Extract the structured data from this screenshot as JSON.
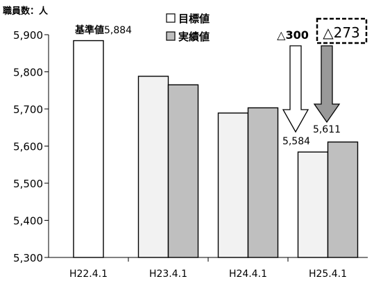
{
  "chart_data": {
    "type": "bar",
    "ylabel": "職員数：人",
    "categories": [
      "H22.4.1",
      "H23.4.1",
      "H24.4.1",
      "H25.4.1"
    ],
    "ylim": [
      5300,
      5900
    ],
    "yticks": [
      5900,
      5800,
      5700,
      5600,
      5500,
      5400,
      5300
    ],
    "ytick_labels": [
      "5,900",
      "5,800",
      "5,700",
      "5,600",
      "5,500",
      "5,400",
      "5,300"
    ],
    "grid": false,
    "legend_position": "top-right",
    "baseline": {
      "label": "基準値",
      "value": 5884,
      "value_label": "5,884",
      "color": "#ffffff"
    },
    "series": [
      {
        "name": "目標値",
        "color": "#f2f2f2",
        "values": [
          null,
          5788,
          5689,
          5584
        ]
      },
      {
        "name": "実績値",
        "color": "#bfbfbf",
        "values": [
          null,
          5765,
          5703,
          5611
        ]
      }
    ],
    "data_labels": [
      "5,584",
      "5,611"
    ],
    "annotations": {
      "target_reduction": "△300",
      "actual_reduction": "△273"
    }
  }
}
